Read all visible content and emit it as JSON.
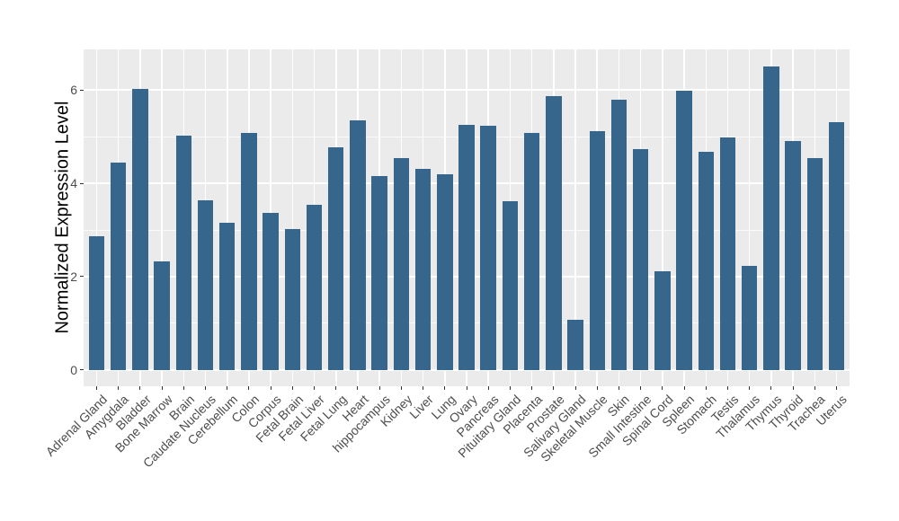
{
  "chart_data": {
    "type": "bar",
    "title": "",
    "xlabel": "",
    "ylabel": "Normalized Expression Level",
    "categories": [
      "Adrenal Gland",
      "Amygdala",
      "Bladder",
      "Bone Marrow",
      "Brain",
      "Caudate Nucleus",
      "Cerebellum",
      "Colon",
      "Corpus",
      "Fetal Brain",
      "Fetal Liver",
      "Fetal Lung",
      "Heart",
      "hippocampus",
      "Kidney",
      "Liver",
      "Lung",
      "Ovary",
      "Pancreas",
      "Pituitary Gland",
      "Placenta",
      "Prostate",
      "Salivary Gland",
      "Skeletal Muscle",
      "Skin",
      "Small Intestine",
      "Spinal Cord",
      "Spleen",
      "Stomach",
      "Testis",
      "Thalamus",
      "Thymus",
      "Thyroid",
      "Trachea",
      "Uterus"
    ],
    "values": [
      2.87,
      4.44,
      6.02,
      2.32,
      5.02,
      3.63,
      3.15,
      5.08,
      3.36,
      3.02,
      3.53,
      4.78,
      5.35,
      4.15,
      4.55,
      4.3,
      4.2,
      5.26,
      5.24,
      3.61,
      5.07,
      5.86,
      1.07,
      5.12,
      5.79,
      4.73,
      2.11,
      5.98,
      4.67,
      4.99,
      2.23,
      6.5,
      4.91,
      4.54,
      5.31
    ],
    "yticks": [
      0,
      2,
      4,
      6
    ],
    "yticks_minor": [
      1,
      3,
      5
    ],
    "ylim": [
      -0.34,
      6.87
    ],
    "grid": true,
    "legend": "none",
    "bar_color": "#37668D",
    "panel_bg": "#EBEBEB",
    "grid_color": "#FFFFFF",
    "axis_text_color": "#4D4D4D",
    "tick_mark_color": "#333333"
  }
}
